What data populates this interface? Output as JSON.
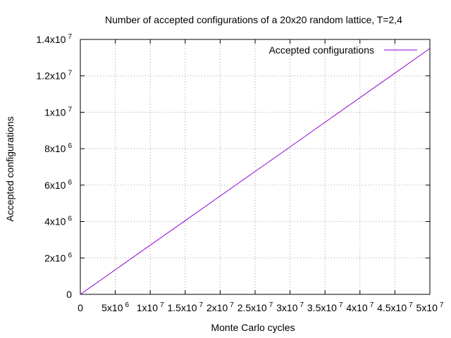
{
  "chart_data": {
    "type": "line",
    "title": "Number of accepted configurations of a 20x20 random lattice, T=2,4",
    "xlabel": "Monte Carlo cycles",
    "ylabel": "Accepted configurations",
    "xlim": [
      0,
      50000000
    ],
    "ylim": [
      0,
      14000000
    ],
    "grid": true,
    "legend_position": "top-right",
    "x_ticks": [
      {
        "value": 0,
        "base": "0",
        "exp": ""
      },
      {
        "value": 5000000,
        "base": "5x10",
        "exp": "6"
      },
      {
        "value": 10000000,
        "base": "1x10",
        "exp": "7"
      },
      {
        "value": 15000000,
        "base": "1.5x10",
        "exp": "7"
      },
      {
        "value": 20000000,
        "base": "2x10",
        "exp": "7"
      },
      {
        "value": 25000000,
        "base": "2.5x10",
        "exp": "7"
      },
      {
        "value": 30000000,
        "base": "3x10",
        "exp": "7"
      },
      {
        "value": 35000000,
        "base": "3.5x10",
        "exp": "7"
      },
      {
        "value": 40000000,
        "base": "4x10",
        "exp": "7"
      },
      {
        "value": 45000000,
        "base": "4.5x10",
        "exp": "7"
      },
      {
        "value": 50000000,
        "base": "5x10",
        "exp": "7"
      }
    ],
    "y_ticks": [
      {
        "value": 0,
        "base": "0",
        "exp": ""
      },
      {
        "value": 2000000,
        "base": "2x10",
        "exp": "6"
      },
      {
        "value": 4000000,
        "base": "4x10",
        "exp": "6"
      },
      {
        "value": 6000000,
        "base": "6x10",
        "exp": "6"
      },
      {
        "value": 8000000,
        "base": "8x10",
        "exp": "6"
      },
      {
        "value": 10000000,
        "base": "1x10",
        "exp": "7"
      },
      {
        "value": 12000000,
        "base": "1.2x10",
        "exp": "7"
      },
      {
        "value": 14000000,
        "base": "1.4x10",
        "exp": "7"
      }
    ],
    "series": [
      {
        "name": "Accepted configurations",
        "color": "#9400d3",
        "x": [
          0,
          5000000,
          10000000,
          15000000,
          20000000,
          25000000,
          30000000,
          35000000,
          40000000,
          45000000,
          50000000
        ],
        "y": [
          0,
          1350000,
          2700000,
          4050000,
          5400000,
          6750000,
          8100000,
          9450000,
          10800000,
          12150000,
          13500000
        ]
      }
    ]
  }
}
